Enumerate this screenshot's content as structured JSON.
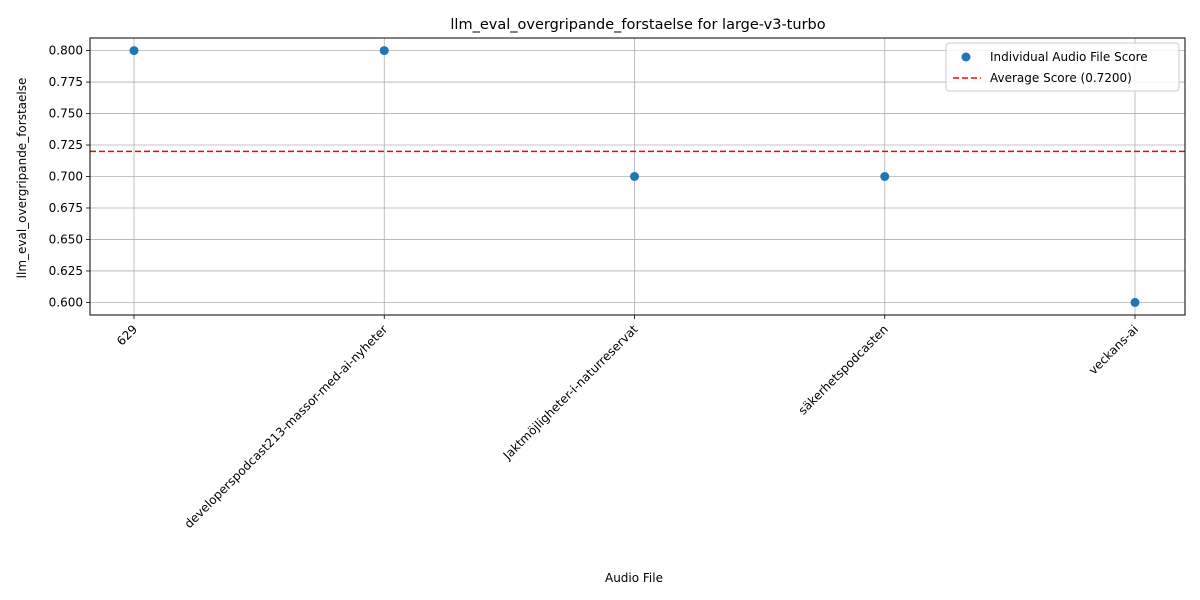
{
  "chart_data": {
    "type": "scatter",
    "title": "llm_eval_overgripande_forstaelse for large-v3-turbo",
    "xlabel": "Audio File",
    "ylabel": "llm_eval_overgripande_forstaelse",
    "categories": [
      "629",
      "developerspodcast213-massor-med-ai-nyheter",
      "Jaktmöjligheter-i-naturreservat",
      "säkerhetspodcasten",
      "veckans-ai"
    ],
    "series": [
      {
        "name": "Individual Audio File Score",
        "values": [
          0.8,
          0.8,
          0.7,
          0.7,
          0.6
        ],
        "color": "#1f77b4"
      }
    ],
    "average": {
      "name": "Average Score (0.7200)",
      "value": 0.72,
      "color": "#ff0000",
      "style": "dashed"
    },
    "ylim": [
      0.59,
      0.81
    ],
    "yticks": [
      "0.600",
      "0.625",
      "0.650",
      "0.675",
      "0.700",
      "0.725",
      "0.750",
      "0.775",
      "0.800"
    ],
    "grid": true,
    "legend_position": "top-right"
  }
}
